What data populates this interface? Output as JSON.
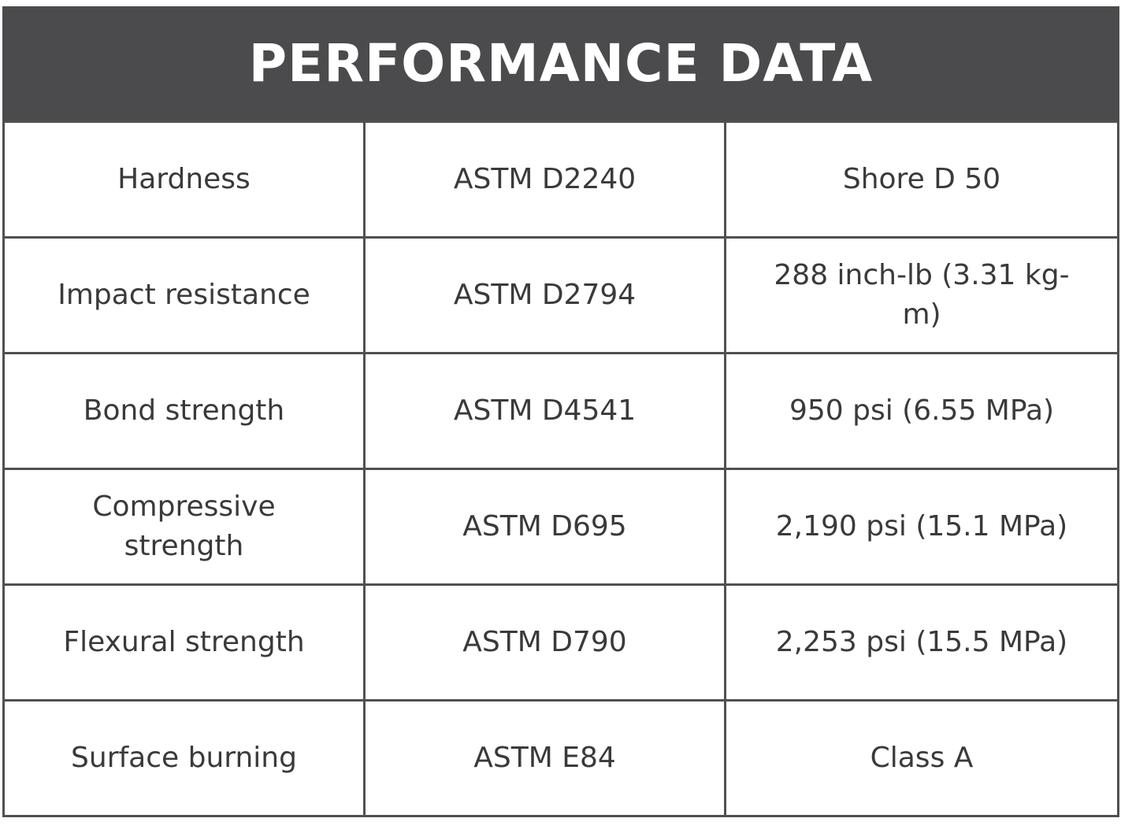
{
  "header": {
    "title": "PERFORMANCE DATA"
  },
  "table": {
    "rows": [
      [
        "Hardness",
        "ASTM D2240",
        "Shore D 50"
      ],
      [
        "Impact resistance",
        "ASTM D2794",
        "288 inch-lb (3.31 kg-m)"
      ],
      [
        "Bond strength",
        "ASTM D4541",
        "950 psi (6.55 MPa)"
      ],
      [
        "Compressive strength",
        "ASTM D695",
        "2,190 psi (15.1 MPa)"
      ],
      [
        "Flexural strength",
        "ASTM D790",
        "2,253 psi (15.5 MPa)"
      ],
      [
        "Surface burning",
        "ASTM E84",
        "Class A"
      ]
    ]
  }
}
